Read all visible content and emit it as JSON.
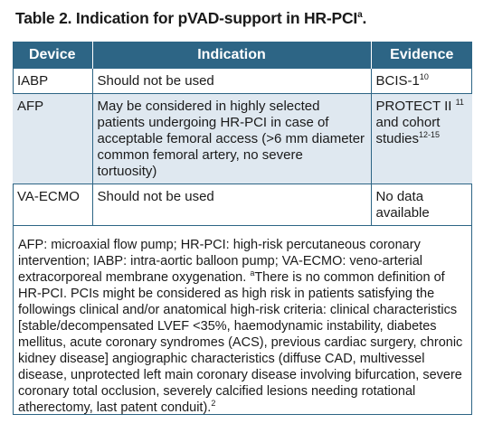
{
  "title": {
    "text": "Table 2. Indication for pVAD-support in HR-PCI",
    "sup": "a",
    "end": "."
  },
  "table": {
    "headers": {
      "device": "Device",
      "indication": "Indication",
      "evidence": "Evidence"
    },
    "rows": [
      {
        "device": "IABP",
        "indication": "Should not be used",
        "evidence": "BCIS-1",
        "evidence_sup": "10",
        "evidence_tail": ""
      },
      {
        "device": "AFP",
        "indication": "May be considered in highly selected patients undergoing HR-PCI in case of acceptable femoral access (>6 mm diameter common femoral artery, no severe tortuosity)",
        "evidence": "PROTECT II ",
        "evidence_sup": "11",
        "evidence_tail": " and cohort studies",
        "evidence_sup2": "12-15"
      },
      {
        "device": "VA-ECMO",
        "indication": "Should not be used",
        "evidence": "No data available",
        "evidence_sup": "",
        "evidence_tail": ""
      }
    ]
  },
  "footnote": {
    "abbrev": "AFP: microaxial flow pump; HR-PCI: high-risk percutaneous coronary intervention; IABP: intra-aortic balloon pump; VA-ECMO: veno-arterial extracorporeal membrane oxygenation. ",
    "sup_a": "a",
    "body": "There is no common definition of HR-PCI. PCIs might be considered as high risk in patients satisfying the followings clinical and/or anatomical high-risk criteria: clinical characteristics [stable/decompensated LVEF <35%, haemodynamic instability, diabetes mellitus, acute coronary syndromes (ACS), previous cardiac surgery, chronic kidney disease] angiographic characteristics (diffuse CAD, multivessel disease, unprotected left main coronary disease involving bifurcation, severe coronary total occlusion, severely calcified lesions needing rotational atherectomy, last patent conduit).",
    "ref": "2"
  }
}
